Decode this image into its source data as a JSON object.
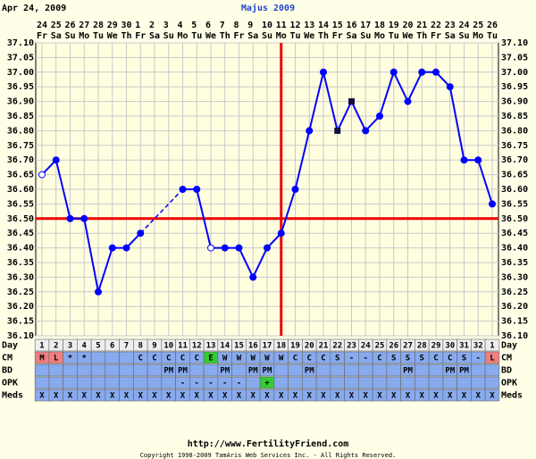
{
  "chart_data": {
    "type": "line",
    "date_label": "Apr 24, 2009",
    "title": "Majus 2009",
    "categories": [
      "24",
      "25",
      "26",
      "27",
      "28",
      "29",
      "30",
      "1",
      "2",
      "3",
      "4",
      "5",
      "6",
      "7",
      "8",
      "9",
      "10",
      "11",
      "12",
      "13",
      "14",
      "15",
      "16",
      "17",
      "18",
      "19",
      "20",
      "21",
      "22",
      "23",
      "24",
      "25",
      "26"
    ],
    "weekdays": [
      "Fr",
      "Sa",
      "Su",
      "Mo",
      "Tu",
      "We",
      "Th",
      "Fr",
      "Sa",
      "Su",
      "Mo",
      "Tu",
      "We",
      "Th",
      "Fr",
      "Sa",
      "Su",
      "Mo",
      "Tu",
      "We",
      "Th",
      "Fr",
      "Sa",
      "Su",
      "Mo",
      "Tu",
      "We",
      "Th",
      "Fr",
      "Sa",
      "Su",
      "Mo",
      "Tu"
    ],
    "series": [
      {
        "color": "#0000ff",
        "values": [
          36.65,
          36.7,
          36.5,
          36.5,
          36.25,
          36.4,
          36.4,
          36.45,
          null,
          null,
          36.6,
          36.6,
          36.4,
          36.4,
          36.4,
          36.3,
          36.4,
          36.45,
          36.6,
          36.8,
          37.0,
          36.8,
          36.9,
          36.8,
          36.85,
          37.0,
          36.9,
          37.0,
          37.0,
          36.95,
          36.7,
          36.7,
          36.55
        ],
        "markers": [
          "open",
          "filled",
          "filled",
          "filled",
          "filled",
          "filled",
          "filled",
          "filled",
          null,
          null,
          "filled",
          "filled",
          "open",
          "filled",
          "filled",
          "filled",
          "filled",
          "filled",
          "filled",
          "filled",
          "filled",
          "square",
          "square",
          "filled",
          "filled",
          "filled",
          "filled",
          "filled",
          "filled",
          "filled",
          "filled",
          "filled",
          "filled"
        ]
      }
    ],
    "ylim": [
      36.1,
      37.1
    ],
    "yticks": [
      {
        "value": 36.1,
        "label": "36.10"
      },
      {
        "value": 36.15,
        "label": "36.15"
      },
      {
        "value": 36.2,
        "label": "36.20"
      },
      {
        "value": 36.25,
        "label": "36.25"
      },
      {
        "value": 36.3,
        "label": "36.30"
      },
      {
        "value": 36.35,
        "label": "36.35"
      },
      {
        "value": 36.4,
        "label": "36.40"
      },
      {
        "value": 36.45,
        "label": "36.45"
      },
      {
        "value": 36.5,
        "label": "36.50"
      },
      {
        "value": 36.55,
        "label": "36.55"
      },
      {
        "value": 36.6,
        "label": "36.60"
      },
      {
        "value": 36.65,
        "label": "36.65"
      },
      {
        "value": 36.7,
        "label": "36.70"
      },
      {
        "value": 36.75,
        "label": "36.75"
      },
      {
        "value": 36.8,
        "label": "36.80"
      },
      {
        "value": 36.85,
        "label": "36.85"
      },
      {
        "value": 36.9,
        "label": "36.90"
      },
      {
        "value": 36.95,
        "label": "36.95"
      },
      {
        "value": 37.0,
        "label": "37.00"
      },
      {
        "value": 37.05,
        "label": "37.05"
      },
      {
        "value": 37.1,
        "label": "37.10"
      }
    ],
    "grid": true,
    "coverline": {
      "value": 36.5,
      "color": "#ee0000"
    },
    "ovulation": {
      "day": 18,
      "color": "#ee0000"
    },
    "rows": [
      {
        "label": "Day",
        "color": "#eeeeee",
        "cells": [
          "1",
          "2",
          "3",
          "4",
          "5",
          "6",
          "7",
          "8",
          "9",
          "10",
          "11",
          "12",
          "13",
          "14",
          "15",
          "16",
          "17",
          "18",
          "19",
          "20",
          "21",
          "22",
          "23",
          "24",
          "25",
          "26",
          "27",
          "28",
          "29",
          "30",
          "31",
          "32",
          "1"
        ]
      },
      {
        "label": "CM",
        "color": "#88aaee",
        "cells": [
          "M",
          "L",
          "*",
          "*",
          null,
          null,
          null,
          "C",
          "C",
          "C",
          "C",
          "C",
          "E",
          "W",
          "W",
          "W",
          "W",
          "W",
          "C",
          "C",
          "C",
          "S",
          "-",
          "-",
          "C",
          "S",
          "S",
          "S",
          "C",
          "C",
          "S",
          "-",
          "L"
        ],
        "cell_colors": [
          "#f08080",
          "#f08080",
          null,
          null,
          null,
          null,
          null,
          null,
          null,
          null,
          null,
          null,
          "#33cc33",
          null,
          null,
          null,
          null,
          null,
          null,
          null,
          null,
          null,
          null,
          null,
          null,
          null,
          null,
          null,
          null,
          null,
          null,
          null,
          "#f08080"
        ]
      },
      {
        "label": "BD",
        "color": "#88aaee",
        "cells": [
          null,
          null,
          null,
          null,
          null,
          null,
          null,
          null,
          null,
          "PM",
          "PM",
          null,
          null,
          "PM",
          null,
          "PM",
          "PM",
          null,
          null,
          "PM",
          null,
          null,
          null,
          null,
          null,
          null,
          "PM",
          null,
          null,
          "PM",
          "PM",
          null,
          null
        ]
      },
      {
        "label": "OPK",
        "color": "#88aaee",
        "cells": [
          null,
          null,
          null,
          null,
          null,
          null,
          null,
          null,
          null,
          null,
          "-",
          "-",
          "-",
          "-",
          "-",
          null,
          "+",
          null,
          null,
          null,
          null,
          null,
          null,
          null,
          null,
          null,
          null,
          null,
          null,
          null,
          null,
          null,
          null
        ],
        "cell_colors": [
          null,
          null,
          null,
          null,
          null,
          null,
          null,
          null,
          null,
          null,
          null,
          null,
          null,
          null,
          null,
          null,
          "#33cc33",
          null,
          null,
          null,
          null,
          null,
          null,
          null,
          null,
          null,
          null,
          null,
          null,
          null,
          null,
          null,
          null
        ]
      },
      {
        "label": "Meds",
        "color": "#88aaee",
        "cells": [
          "X",
          "X",
          "X",
          "X",
          "X",
          "X",
          "X",
          "X",
          "X",
          "X",
          "X",
          "X",
          "X",
          "X",
          "X",
          "X",
          "X",
          "X",
          "X",
          "X",
          "X",
          "X",
          "X",
          "X",
          "X",
          "X",
          "X",
          "X",
          "X",
          "X",
          "X",
          "X",
          "X"
        ]
      }
    ]
  },
  "footer": {
    "url": "http://www.FertilityFriend.com",
    "copyright": "Copyright 1998-2009 TamAris Web Services Inc. - All Rights Reserved."
  }
}
